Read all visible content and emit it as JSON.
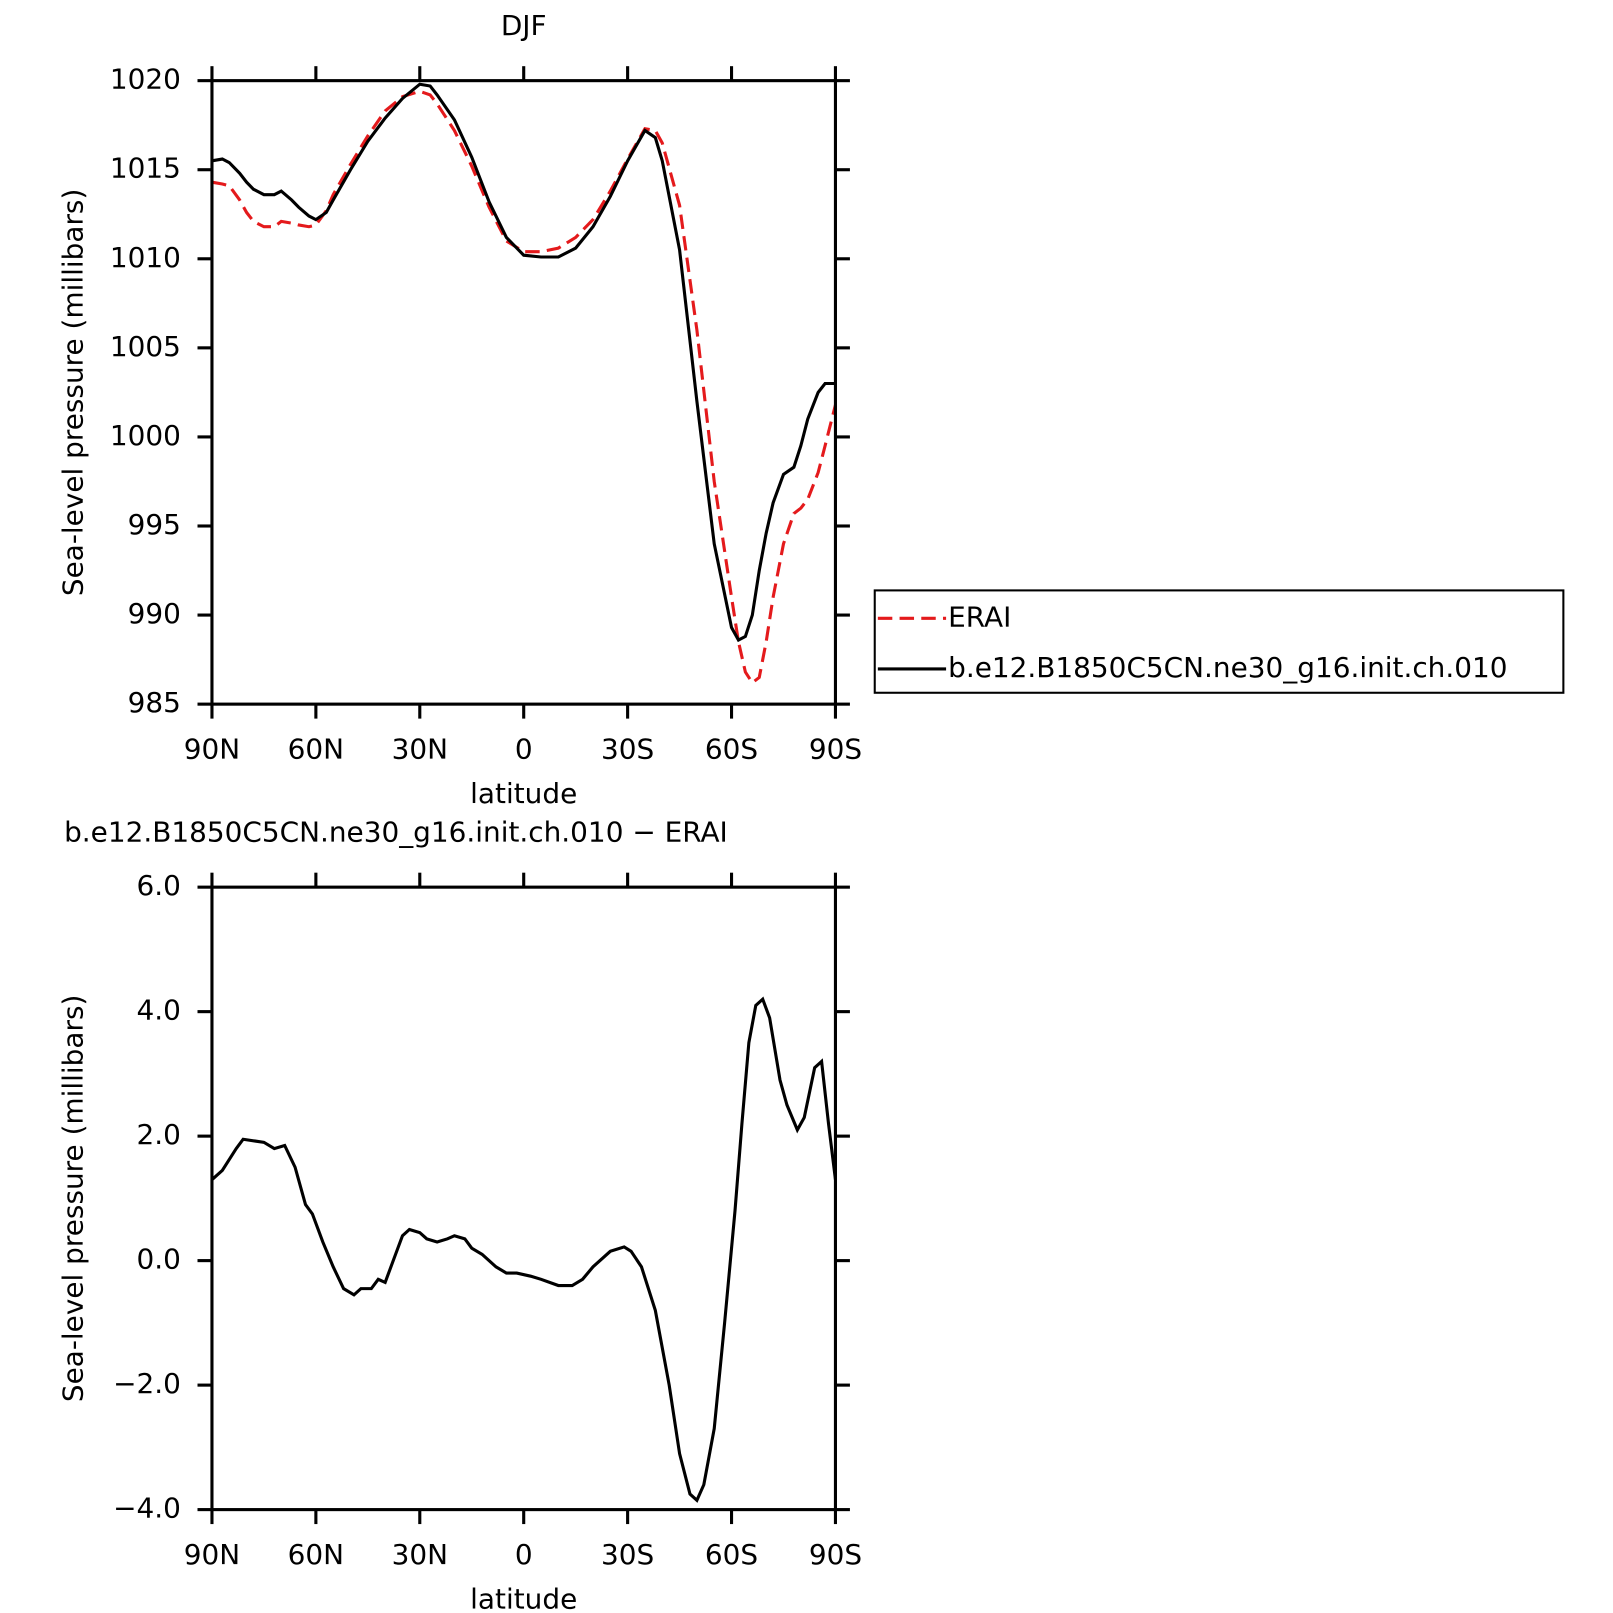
{
  "chart_data": [
    {
      "type": "line",
      "title": "DJF",
      "x_label": "latitude",
      "y_label": "Sea-level pressure (millibars)",
      "x": [
        90,
        87,
        85,
        82,
        80,
        78,
        75,
        72,
        70,
        67,
        65,
        62,
        60,
        57,
        55,
        50,
        45,
        40,
        35,
        30,
        27,
        25,
        20,
        15,
        10,
        5,
        0,
        -5,
        -10,
        -15,
        -20,
        -25,
        -30,
        -35,
        -38,
        -40,
        -45,
        -50,
        -55,
        -60,
        -62,
        -64,
        -66,
        -68,
        -70,
        -72,
        -75,
        -78,
        -80,
        -82,
        -85,
        -87,
        -90
      ],
      "series": [
        {
          "name": "ERAI",
          "color": "#e41a1c",
          "dash": true,
          "values": [
            1014.3,
            1014.2,
            1014.1,
            1013.3,
            1012.6,
            1012.1,
            1011.8,
            1011.8,
            1012.1,
            1012,
            1011.9,
            1011.8,
            1011.9,
            1012.7,
            1013.6,
            1015.3,
            1016.9,
            1018.3,
            1019.1,
            1019.4,
            1019.2,
            1018.7,
            1017.2,
            1015.2,
            1012.9,
            1011,
            1010.4,
            1010.4,
            1010.6,
            1011.2,
            1012.2,
            1013.8,
            1015.6,
            1017.3,
            1017.2,
            1016.5,
            1013,
            1006,
            997.5,
            991,
            988.5,
            986.8,
            986.2,
            986.5,
            988.5,
            991,
            994,
            995.7,
            996,
            996.5,
            998,
            999.5,
            1001.8
          ]
        },
        {
          "name": "b.e12.B1850C5CN.ne30_g16.init.ch.010",
          "color": "#000000",
          "dash": false,
          "values": [
            1015.5,
            1015.6,
            1015.4,
            1014.8,
            1014.3,
            1013.9,
            1013.6,
            1013.6,
            1013.8,
            1013.3,
            1012.9,
            1012.4,
            1012.2,
            1012.6,
            1013.3,
            1015,
            1016.6,
            1017.9,
            1019,
            1019.8,
            1019.7,
            1019.2,
            1017.8,
            1015.7,
            1013.2,
            1011.2,
            1010.2,
            1010.1,
            1010.1,
            1010.6,
            1011.8,
            1013.5,
            1015.5,
            1017.2,
            1016.8,
            1015.5,
            1010.5,
            1002,
            994,
            989.3,
            988.6,
            988.8,
            990,
            992.5,
            994.6,
            996.3,
            997.9,
            998.3,
            999.5,
            1001,
            1002.5,
            1003,
            1003
          ]
        }
      ],
      "xlim": [
        90,
        -90
      ],
      "xticks": [
        {
          "value": 90,
          "label": "90N"
        },
        {
          "value": 60,
          "label": "60N"
        },
        {
          "value": 30,
          "label": "30N"
        },
        0,
        {
          "value": -30,
          "label": "30S"
        },
        {
          "value": -60,
          "label": "60S"
        },
        {
          "value": -90,
          "label": "90S"
        }
      ],
      "ylim": [
        985,
        1020
      ],
      "yticks": [
        985,
        990,
        995,
        1000,
        1005,
        1010,
        1015,
        1020
      ],
      "legend": "right"
    },
    {
      "type": "line",
      "title": "b.e12.B1850C5CN.ne30_g16.init.ch.010 − ERAI",
      "x_label": "latitude",
      "y_label": "Sea-level pressure (millibars)",
      "x": [
        90,
        87,
        83,
        81,
        75,
        72,
        69,
        66,
        63,
        61,
        58,
        55,
        52,
        49,
        47,
        44,
        42,
        40,
        37,
        35,
        33,
        30,
        28,
        25,
        22,
        20,
        17,
        15,
        12,
        8,
        5,
        2,
        -2,
        -5,
        -10,
        -14,
        -17,
        -20,
        -25,
        -29,
        -31,
        -34,
        -38,
        -42,
        -45,
        -48,
        -50,
        -52,
        -55,
        -58,
        -61,
        -63,
        -65,
        -67,
        -69,
        -71,
        -74,
        -76,
        -79,
        -81,
        -84,
        -86,
        -88,
        -90
      ],
      "series": [
        {
          "color": "#000000",
          "dash": false,
          "values": [
            1.3,
            1.45,
            1.8,
            1.95,
            1.9,
            1.8,
            1.85,
            1.5,
            0.9,
            0.75,
            0.3,
            -0.1,
            -0.45,
            -0.55,
            -0.45,
            -0.45,
            -0.3,
            -0.35,
            0.1,
            0.4,
            0.5,
            0.45,
            0.35,
            0.3,
            0.35,
            0.4,
            0.35,
            0.2,
            0.1,
            -0.1,
            -0.2,
            -0.2,
            -0.25,
            -0.3,
            -0.4,
            -0.4,
            -0.3,
            -0.1,
            0.15,
            0.22,
            0.15,
            -0.1,
            -0.8,
            -2,
            -3.1,
            -3.75,
            -3.85,
            -3.6,
            -2.7,
            -1,
            0.8,
            2.2,
            3.5,
            4.1,
            4.2,
            3.9,
            2.9,
            2.5,
            2.1,
            2.3,
            3.1,
            3.2,
            2.2,
            1.3
          ]
        }
      ],
      "xlim": [
        90,
        -90
      ],
      "xticks": [
        {
          "value": 90,
          "label": "90N"
        },
        {
          "value": 60,
          "label": "60N"
        },
        {
          "value": 30,
          "label": "30N"
        },
        0,
        {
          "value": -30,
          "label": "30S"
        },
        {
          "value": -60,
          "label": "60S"
        },
        {
          "value": -90,
          "label": "90S"
        }
      ],
      "ylim": [
        -4,
        6
      ],
      "yticks": [
        {
          "value": -4,
          "label": "−4.0"
        },
        {
          "value": -2,
          "label": "−2.0"
        },
        {
          "value": 0,
          "label": "0.0"
        },
        {
          "value": 2,
          "label": "2.0"
        },
        {
          "value": 4,
          "label": "4.0"
        },
        {
          "value": 6,
          "label": "6.0"
        }
      ]
    }
  ]
}
